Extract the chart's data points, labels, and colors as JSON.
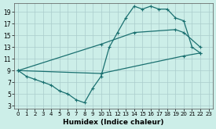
{
  "xlabel": "Humidex (Indice chaleur)",
  "bg_color": "#cceee8",
  "grid_color": "#aacccc",
  "line_color": "#1a7070",
  "xlim": [
    -0.5,
    23.5
  ],
  "ylim": [
    2.5,
    20.5
  ],
  "xticks": [
    0,
    1,
    2,
    3,
    4,
    5,
    6,
    7,
    8,
    9,
    10,
    11,
    12,
    13,
    14,
    15,
    16,
    17,
    18,
    19,
    20,
    21,
    22,
    23
  ],
  "yticks": [
    3,
    5,
    7,
    9,
    11,
    13,
    15,
    17,
    19
  ],
  "curve1_x": [
    0,
    1,
    2,
    3,
    4,
    5,
    6,
    7,
    8,
    9,
    10,
    11,
    12,
    13,
    14,
    15,
    16,
    17,
    18,
    19,
    20,
    21,
    22
  ],
  "curve1_y": [
    9,
    8,
    7.5,
    7,
    6.5,
    5.5,
    5,
    4,
    3.5,
    6,
    8,
    13,
    15.5,
    18,
    20,
    19.5,
    20,
    19.5,
    19.5,
    18,
    17.5,
    13,
    12
  ],
  "curve2_x": [
    0,
    10,
    14,
    19,
    20,
    22
  ],
  "curve2_y": [
    9,
    13.5,
    15.5,
    16,
    15.5,
    13
  ],
  "curve3_x": [
    0,
    10,
    20,
    22
  ],
  "curve3_y": [
    9,
    8.5,
    11.5,
    12
  ]
}
